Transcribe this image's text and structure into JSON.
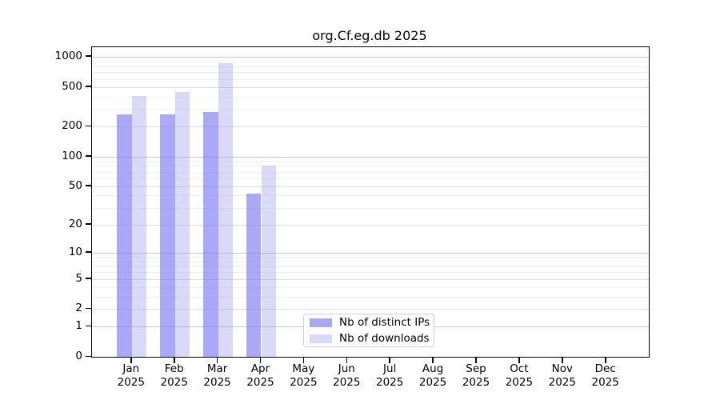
{
  "title": "org.Cf.eg.db 2025",
  "chart_data": {
    "type": "bar",
    "title": "org.Cf.eg.db 2025",
    "x_axis": {
      "categories": [
        "Jan",
        "Feb",
        "Mar",
        "Apr",
        "May",
        "Jun",
        "Jul",
        "Aug",
        "Sep",
        "Oct",
        "Nov",
        "Dec"
      ],
      "year_label": "2025"
    },
    "y_axis": {
      "scale": "log1p",
      "ticks": [
        0,
        1,
        2,
        5,
        10,
        20,
        50,
        100,
        200,
        500,
        1000
      ],
      "major_gridlines": [
        1,
        10,
        100,
        1000
      ],
      "mid_gridlines": [
        2,
        5,
        20,
        50,
        200,
        500
      ],
      "minor_gridlines": [
        3,
        4,
        6,
        7,
        8,
        9,
        30,
        40,
        60,
        70,
        80,
        90,
        300,
        400,
        600,
        700,
        800,
        900
      ],
      "range": [
        0,
        1100
      ],
      "grid": true
    },
    "series": [
      {
        "name": "Nb of distinct IPs",
        "legend_color": "#a9a9f2",
        "fill_rgba": "rgba(116,116,242,0.62)",
        "values": [
          265,
          263,
          278,
          42,
          null,
          null,
          null,
          null,
          null,
          null,
          null,
          null
        ]
      },
      {
        "name": "Nb of downloads",
        "legend_color": "#dadaf8",
        "fill_rgba": "rgba(149,149,235,0.35)",
        "values": [
          405,
          440,
          860,
          80,
          null,
          null,
          null,
          null,
          null,
          null,
          null,
          null
        ]
      }
    ],
    "legend_position": "lower center"
  }
}
